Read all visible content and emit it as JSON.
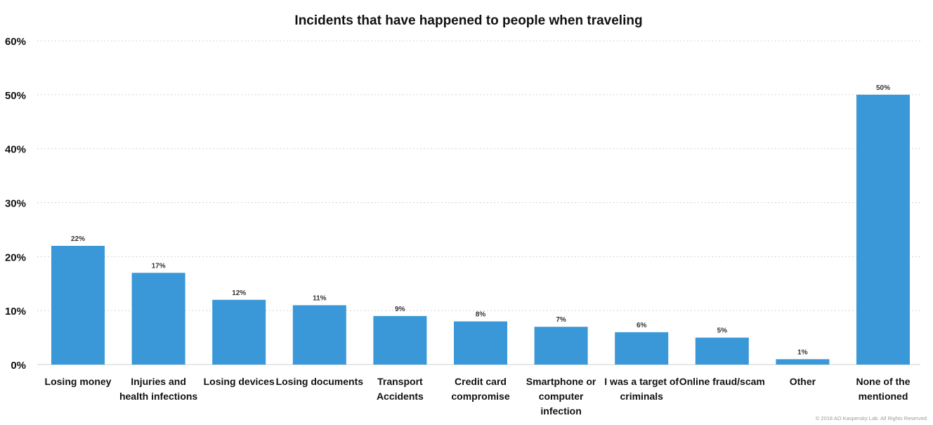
{
  "chart_data": {
    "type": "bar",
    "title": "Incidents that have happened to people when traveling",
    "xlabel": "",
    "ylabel": "",
    "ylim": [
      0,
      60
    ],
    "yticks": [
      0,
      10,
      20,
      30,
      40,
      50,
      60
    ],
    "ytick_labels": [
      "0%",
      "10%",
      "20%",
      "30%",
      "40%",
      "50%",
      "60%"
    ],
    "grid": true,
    "categories": [
      "Losing money",
      "Injuries and health infections",
      "Losing devices",
      "Losing documents",
      "Transport Accidents",
      "Credit card compromise",
      "Smartphone or computer infection",
      "I was a target of criminals",
      "Online fraud/scam",
      "Other",
      "None of the mentioned"
    ],
    "category_lines": [
      [
        "Losing money"
      ],
      [
        "Injuries and",
        "health infections"
      ],
      [
        "Losing devices"
      ],
      [
        "Losing documents"
      ],
      [
        "Transport",
        "Accidents"
      ],
      [
        "Credit card",
        "compromise"
      ],
      [
        "Smartphone or",
        "computer",
        "infection"
      ],
      [
        "I was a target of",
        "criminals"
      ],
      [
        "Online fraud/scam"
      ],
      [
        "Other"
      ],
      [
        "None of the",
        "mentioned"
      ]
    ],
    "values": [
      22,
      17,
      12,
      11,
      9,
      8,
      7,
      6,
      5,
      1,
      50
    ],
    "data_labels": [
      "22%",
      "17%",
      "12%",
      "11%",
      "9%",
      "8%",
      "7%",
      "6%",
      "5%",
      "1%",
      "50%"
    ],
    "bar_color": "#3a98d8"
  },
  "footer": {
    "copyright": "© 2018 AO Kaspersky Lab. All Rights Reserved."
  }
}
